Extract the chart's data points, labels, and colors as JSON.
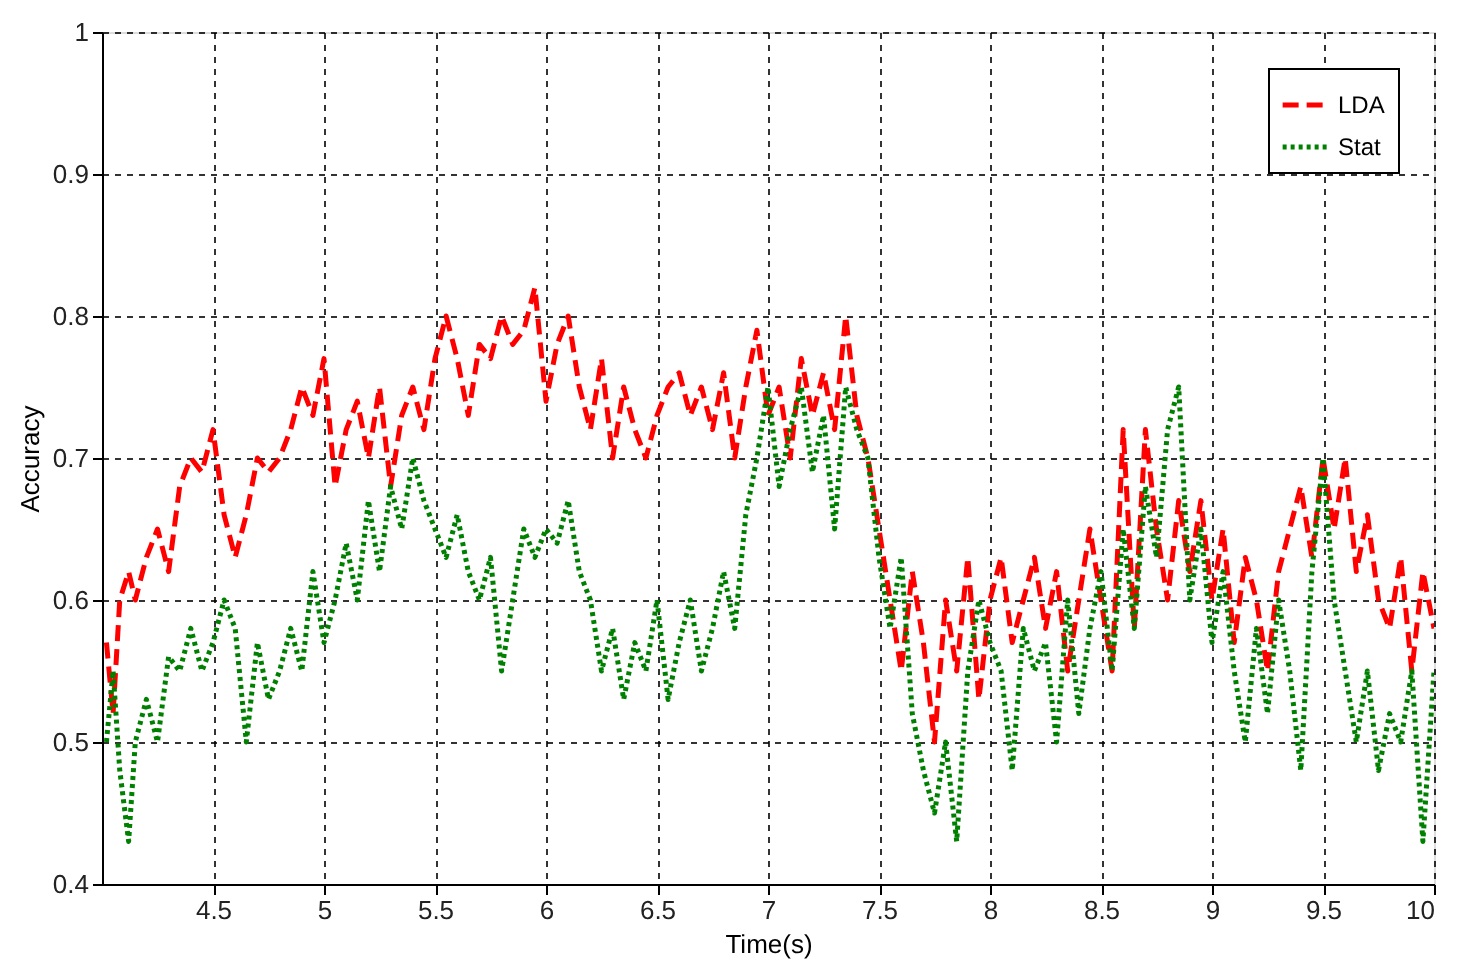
{
  "chart_data": {
    "type": "line",
    "xlabel": "Time(s)",
    "ylabel": "Accuracy",
    "x": [
      4.02,
      4.05,
      4.08,
      4.12,
      4.15,
      4.2,
      4.25,
      4.3,
      4.35,
      4.4,
      4.45,
      4.5,
      4.55,
      4.6,
      4.65,
      4.7,
      4.75,
      4.8,
      4.85,
      4.9,
      4.95,
      5.0,
      5.05,
      5.1,
      5.15,
      5.2,
      5.25,
      5.3,
      5.35,
      5.4,
      5.45,
      5.5,
      5.55,
      5.6,
      5.65,
      5.7,
      5.75,
      5.8,
      5.85,
      5.9,
      5.95,
      6.0,
      6.05,
      6.1,
      6.15,
      6.2,
      6.25,
      6.3,
      6.35,
      6.4,
      6.45,
      6.5,
      6.55,
      6.6,
      6.65,
      6.7,
      6.75,
      6.8,
      6.85,
      6.9,
      6.95,
      7.0,
      7.05,
      7.1,
      7.15,
      7.2,
      7.25,
      7.3,
      7.35,
      7.4,
      7.45,
      7.5,
      7.55,
      7.6,
      7.65,
      7.7,
      7.75,
      7.8,
      7.85,
      7.9,
      7.95,
      8.0,
      8.05,
      8.1,
      8.15,
      8.2,
      8.25,
      8.3,
      8.35,
      8.4,
      8.45,
      8.5,
      8.55,
      8.6,
      8.65,
      8.7,
      8.75,
      8.8,
      8.85,
      8.9,
      8.95,
      9.0,
      9.05,
      9.1,
      9.15,
      9.2,
      9.25,
      9.3,
      9.35,
      9.4,
      9.45,
      9.5,
      9.55,
      9.6,
      9.65,
      9.7,
      9.75,
      9.8,
      9.85,
      9.9,
      9.95,
      10.0
    ],
    "series": [
      {
        "name": "LDA",
        "color": "#ff0000",
        "line_style": "dashed",
        "values": [
          0.57,
          0.52,
          0.6,
          0.62,
          0.6,
          0.63,
          0.65,
          0.62,
          0.68,
          0.7,
          0.69,
          0.72,
          0.66,
          0.63,
          0.66,
          0.7,
          0.69,
          0.7,
          0.72,
          0.75,
          0.73,
          0.77,
          0.68,
          0.72,
          0.74,
          0.7,
          0.75,
          0.68,
          0.73,
          0.75,
          0.72,
          0.77,
          0.8,
          0.77,
          0.73,
          0.78,
          0.77,
          0.8,
          0.78,
          0.79,
          0.82,
          0.74,
          0.78,
          0.8,
          0.75,
          0.72,
          0.77,
          0.7,
          0.75,
          0.72,
          0.7,
          0.73,
          0.75,
          0.76,
          0.73,
          0.75,
          0.72,
          0.76,
          0.7,
          0.75,
          0.79,
          0.73,
          0.75,
          0.7,
          0.77,
          0.73,
          0.76,
          0.72,
          0.8,
          0.73,
          0.7,
          0.65,
          0.6,
          0.55,
          0.62,
          0.57,
          0.5,
          0.6,
          0.55,
          0.63,
          0.53,
          0.6,
          0.63,
          0.57,
          0.6,
          0.63,
          0.58,
          0.62,
          0.55,
          0.6,
          0.65,
          0.6,
          0.55,
          0.72,
          0.58,
          0.72,
          0.65,
          0.6,
          0.67,
          0.62,
          0.67,
          0.6,
          0.65,
          0.57,
          0.63,
          0.6,
          0.55,
          0.62,
          0.65,
          0.68,
          0.63,
          0.7,
          0.65,
          0.7,
          0.62,
          0.66,
          0.6,
          0.58,
          0.63,
          0.55,
          0.62,
          0.58
        ]
      },
      {
        "name": "Stat",
        "color": "#008000",
        "line_style": "dotted",
        "values": [
          0.5,
          0.55,
          0.48,
          0.43,
          0.5,
          0.53,
          0.5,
          0.56,
          0.55,
          0.58,
          0.55,
          0.57,
          0.6,
          0.58,
          0.5,
          0.57,
          0.53,
          0.55,
          0.58,
          0.55,
          0.62,
          0.57,
          0.6,
          0.64,
          0.6,
          0.67,
          0.62,
          0.68,
          0.65,
          0.7,
          0.67,
          0.65,
          0.63,
          0.66,
          0.62,
          0.6,
          0.63,
          0.55,
          0.6,
          0.65,
          0.63,
          0.65,
          0.64,
          0.67,
          0.62,
          0.6,
          0.55,
          0.58,
          0.53,
          0.57,
          0.55,
          0.6,
          0.53,
          0.57,
          0.6,
          0.55,
          0.58,
          0.62,
          0.58,
          0.66,
          0.7,
          0.75,
          0.68,
          0.72,
          0.75,
          0.69,
          0.73,
          0.65,
          0.75,
          0.72,
          0.7,
          0.63,
          0.58,
          0.63,
          0.52,
          0.48,
          0.45,
          0.5,
          0.43,
          0.55,
          0.6,
          0.57,
          0.55,
          0.48,
          0.58,
          0.55,
          0.57,
          0.5,
          0.6,
          0.52,
          0.58,
          0.62,
          0.55,
          0.65,
          0.58,
          0.68,
          0.63,
          0.72,
          0.75,
          0.6,
          0.65,
          0.57,
          0.62,
          0.55,
          0.5,
          0.58,
          0.52,
          0.6,
          0.55,
          0.48,
          0.62,
          0.7,
          0.6,
          0.55,
          0.5,
          0.55,
          0.48,
          0.52,
          0.5,
          0.55,
          0.43,
          0.55
        ]
      }
    ],
    "xlim": [
      4,
      10
    ],
    "xticks": [
      4.5,
      5,
      5.5,
      6,
      6.5,
      7,
      7.5,
      8,
      8.5,
      9,
      9.5,
      10
    ],
    "ylim": [
      0.4,
      1
    ],
    "yticks": [
      0.4,
      0.5,
      0.6,
      0.7,
      0.8,
      0.9,
      1
    ],
    "grid": true,
    "legend": "top right"
  }
}
